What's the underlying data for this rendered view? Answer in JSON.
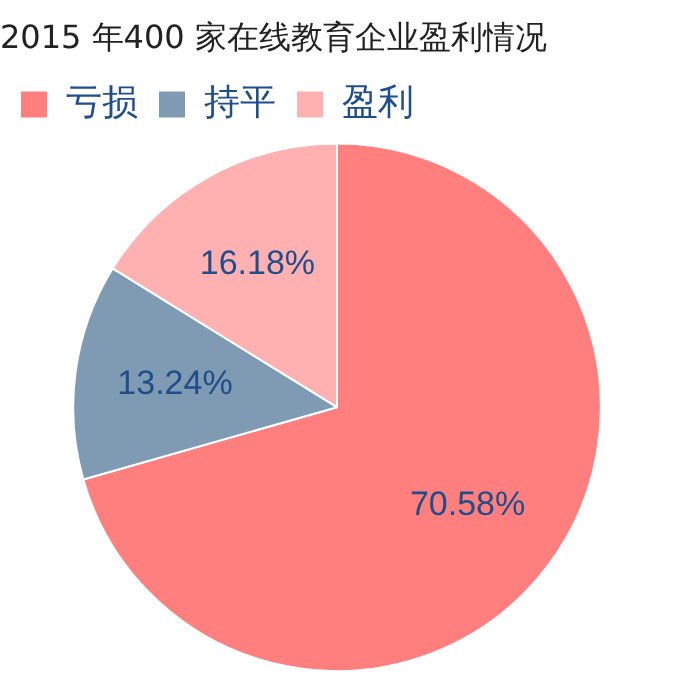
{
  "chart_data": {
    "type": "pie",
    "title": "2015 年400 家在线教育企业盈利情况",
    "categories": [
      "亏损",
      "持平",
      "盈利"
    ],
    "values": [
      70.58,
      13.24,
      16.18
    ],
    "value_labels": [
      "70.58%",
      "13.24%",
      "16.18%"
    ],
    "colors": [
      "#ff7f7f",
      "#7f9ab3",
      "#ffb1b1"
    ],
    "legend": "top left"
  }
}
